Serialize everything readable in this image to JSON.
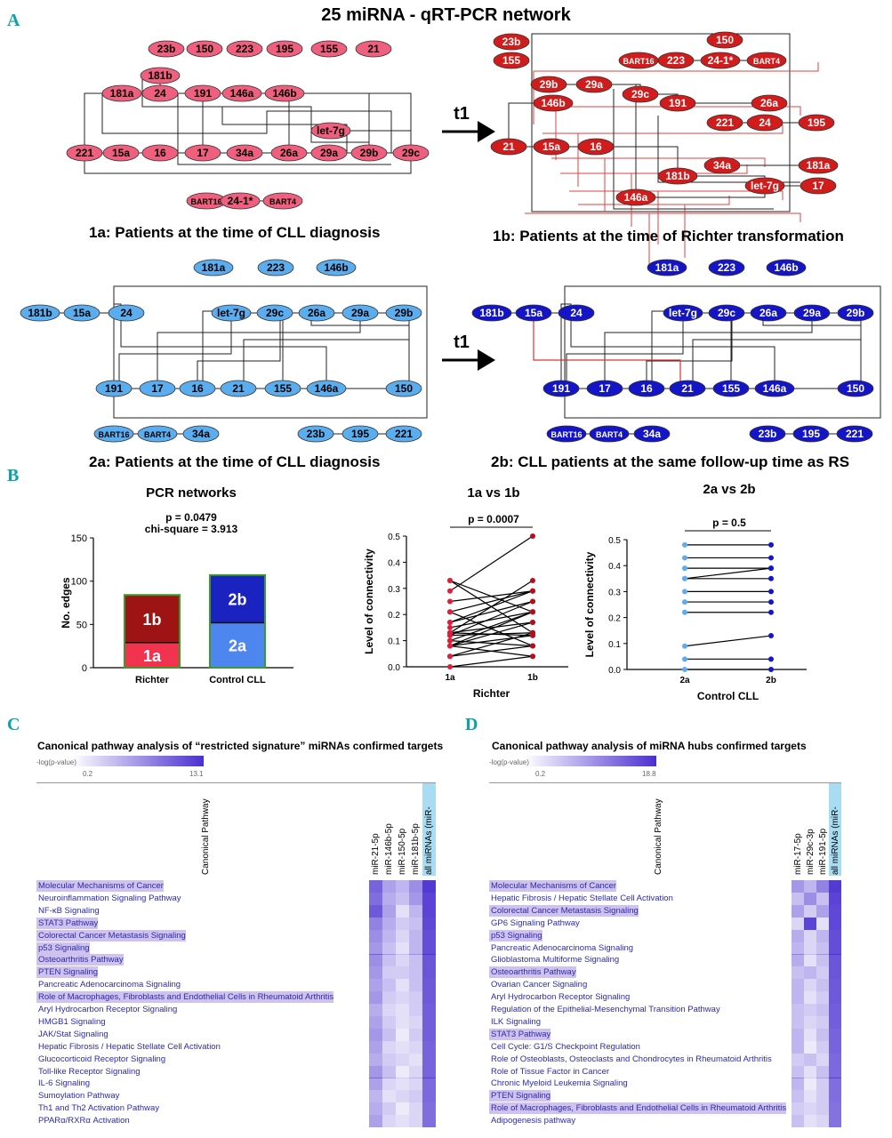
{
  "panel_labels": [
    "A",
    "B",
    "C",
    "D"
  ],
  "main_title": "25 miRNA - qRT-PCR network",
  "arrow_label": "t1",
  "networks": {
    "n1a": {
      "caption": "1a: Patients at the time of CLL diagnosis",
      "nodes": [
        "23b",
        "150",
        "223",
        "195",
        "155",
        "21",
        "181b",
        "181a",
        "24",
        "191",
        "146a",
        "146b",
        "let-7g",
        "221",
        "15a",
        "16",
        "17",
        "34a",
        "26a",
        "29a",
        "29b",
        "29c",
        "BART16",
        "24-1*",
        "BART4"
      ]
    },
    "n1b": {
      "caption": "1b: Patients at the time of Richter transformation",
      "nodes": [
        "23b",
        "155",
        "150",
        "BART16",
        "223",
        "24-1*",
        "BART4",
        "29b",
        "29a",
        "29c",
        "146b",
        "191",
        "26a",
        "221",
        "24",
        "195",
        "21",
        "15a",
        "16",
        "34a",
        "181a",
        "181b",
        "let-7g",
        "146a",
        "17"
      ]
    },
    "n2a": {
      "caption": "2a: Patients at the time of CLL diagnosis",
      "nodes": [
        "181a",
        "223",
        "146b",
        "181b",
        "15a",
        "24",
        "let-7g",
        "29c",
        "26a",
        "29a",
        "29b",
        "191",
        "17",
        "16",
        "21",
        "155",
        "146a",
        "150",
        "BART16",
        "BART4",
        "34a",
        "23b",
        "195",
        "221"
      ]
    },
    "n2b": {
      "caption": "2b: CLL patients at the same follow-up time as RS",
      "nodes": [
        "181a",
        "223",
        "146b",
        "181b",
        "15a",
        "24",
        "let-7g",
        "29c",
        "26a",
        "29a",
        "29b",
        "191",
        "17",
        "16",
        "21",
        "155",
        "146a",
        "150",
        "BART16",
        "BART4",
        "34a",
        "23b",
        "195",
        "221"
      ]
    }
  },
  "chart_data": [
    {
      "type": "bar",
      "title": "PCR networks",
      "stat_p": "p = 0.0479",
      "stat_chi": "chi-square = 3.913",
      "ylabel": "No. edges",
      "ylim": [
        0,
        150
      ],
      "yticks": [
        "0",
        "50",
        "100",
        "150"
      ],
      "categories": [
        "Richter",
        "Control CLL"
      ],
      "series": [
        {
          "name": "1a",
          "values": [
            29,
            null
          ]
        },
        {
          "name": "1b",
          "values": [
            55,
            null
          ]
        },
        {
          "name": "2a",
          "values": [
            null,
            52
          ]
        },
        {
          "name": "2b",
          "values": [
            null,
            55
          ]
        }
      ],
      "segment_labels": [
        "1a",
        "1b",
        "2a",
        "2b"
      ]
    },
    {
      "type": "line",
      "title": "1a vs 1b",
      "stat_p": "p = 0.0007",
      "xlabel": "Richter",
      "ylabel": "Level of connectivity",
      "ylim": [
        0,
        0.5
      ],
      "yticks": [
        "0.0",
        "0.1",
        "0.2",
        "0.3",
        "0.4",
        "0.5"
      ],
      "categories": [
        "1a",
        "1b"
      ],
      "pairs": [
        [
          0.0,
          0.04
        ],
        [
          0.04,
          0.08
        ],
        [
          0.04,
          0.13
        ],
        [
          0.08,
          0.12
        ],
        [
          0.08,
          0.17
        ],
        [
          0.08,
          0.21
        ],
        [
          0.08,
          0.04
        ],
        [
          0.1,
          0.08
        ],
        [
          0.1,
          0.21
        ],
        [
          0.12,
          0.13
        ],
        [
          0.12,
          0.25
        ],
        [
          0.13,
          0.12
        ],
        [
          0.13,
          0.17
        ],
        [
          0.13,
          0.33
        ],
        [
          0.15,
          0.21
        ],
        [
          0.17,
          0.25
        ],
        [
          0.17,
          0.29
        ],
        [
          0.21,
          0.29
        ],
        [
          0.21,
          0.08
        ],
        [
          0.25,
          0.29
        ],
        [
          0.29,
          0.5
        ],
        [
          0.33,
          0.21
        ],
        [
          0.33,
          0.13
        ]
      ]
    },
    {
      "type": "line",
      "title": "2a vs 2b",
      "stat_p": "p = 0.5",
      "xlabel": "Control CLL",
      "ylabel": "Level of connectivity",
      "ylim": [
        0,
        0.5
      ],
      "yticks": [
        "0.0",
        "0.1",
        "0.2",
        "0.3",
        "0.4",
        "0.5"
      ],
      "categories": [
        "2a",
        "2b"
      ],
      "pairs": [
        [
          0.0,
          0.0
        ],
        [
          0.04,
          0.04
        ],
        [
          0.09,
          0.13
        ],
        [
          0.22,
          0.22
        ],
        [
          0.26,
          0.26
        ],
        [
          0.3,
          0.3
        ],
        [
          0.35,
          0.39
        ],
        [
          0.35,
          0.35
        ],
        [
          0.39,
          0.39
        ],
        [
          0.43,
          0.43
        ],
        [
          0.48,
          0.48
        ]
      ]
    }
  ],
  "heatmaps": {
    "C": {
      "title": "Canonical pathway analysis of “restricted signature” miRNAs confirmed targets",
      "scale_label": "-log(p-value)",
      "scale_min": "0.2",
      "scale_max": "13.1",
      "pathway_header": "Canonical Pathway",
      "columns": [
        "miR-21-5p",
        "miR-146b-5p",
        "miR-150-5p",
        "miR-181b-5p",
        "all miRNAs (miR-"
      ],
      "rows": [
        {
          "name": "Molecular Mechanisms of Cancer",
          "hl": true,
          "v": [
            0.75,
            0.45,
            0.35,
            0.55,
            0.95
          ]
        },
        {
          "name": "Neuroinflammation Signaling Pathway",
          "hl": false,
          "v": [
            0.7,
            0.4,
            0.3,
            0.5,
            0.9
          ]
        },
        {
          "name": "NF-κB Signaling",
          "hl": false,
          "v": [
            0.8,
            0.45,
            0.15,
            0.35,
            0.9
          ]
        },
        {
          "name": "STAT3 Pathway",
          "hl": true,
          "v": [
            0.6,
            0.4,
            0.25,
            0.3,
            0.88
          ]
        },
        {
          "name": "Colorectal Cancer Metastasis Signaling",
          "hl": true,
          "v": [
            0.55,
            0.35,
            0.2,
            0.35,
            0.85
          ]
        },
        {
          "name": "p53 Signaling",
          "hl": true,
          "v": [
            0.5,
            0.3,
            0.15,
            0.35,
            0.85
          ]
        },
        {
          "name": "Osteoarthritis Pathway",
          "hl": true,
          "v": [
            0.55,
            0.3,
            0.2,
            0.3,
            0.82
          ]
        },
        {
          "name": "PTEN Signaling",
          "hl": true,
          "v": [
            0.5,
            0.25,
            0.25,
            0.3,
            0.82
          ]
        },
        {
          "name": "Pancreatic Adenocarcinoma Signaling",
          "hl": false,
          "v": [
            0.45,
            0.3,
            0.15,
            0.3,
            0.8
          ]
        },
        {
          "name": "Role of Macrophages, Fibroblasts and Endothelial Cells in Rheumatoid Arthritis",
          "hl": true,
          "v": [
            0.5,
            0.25,
            0.2,
            0.25,
            0.8
          ]
        },
        {
          "name": "Aryl Hydrocarbon Receptor Signaling",
          "hl": false,
          "v": [
            0.4,
            0.2,
            0.15,
            0.25,
            0.78
          ]
        },
        {
          "name": "HMGB1 Signaling",
          "hl": false,
          "v": [
            0.45,
            0.25,
            0.15,
            0.2,
            0.78
          ]
        },
        {
          "name": "JAK/Stat Signaling",
          "hl": false,
          "v": [
            0.5,
            0.3,
            0.1,
            0.25,
            0.78
          ]
        },
        {
          "name": "Hepatic Fibrosis / Hepatic Stellate Cell Activation",
          "hl": false,
          "v": [
            0.45,
            0.2,
            0.15,
            0.2,
            0.75
          ]
        },
        {
          "name": "Glucocorticoid Receptor Signaling",
          "hl": false,
          "v": [
            0.4,
            0.25,
            0.2,
            0.15,
            0.75
          ]
        },
        {
          "name": "Toll-like Receptor Signaling",
          "hl": false,
          "v": [
            0.5,
            0.3,
            0.1,
            0.2,
            0.75
          ]
        },
        {
          "name": "IL-6 Signaling",
          "hl": false,
          "v": [
            0.45,
            0.2,
            0.15,
            0.2,
            0.72
          ]
        },
        {
          "name": "Sumoylation Pathway",
          "hl": false,
          "v": [
            0.35,
            0.15,
            0.2,
            0.25,
            0.72
          ]
        },
        {
          "name": "Th1 and Th2 Activation Pathway",
          "hl": false,
          "v": [
            0.4,
            0.25,
            0.1,
            0.2,
            0.7
          ]
        },
        {
          "name": "PPARα/RXRα Activation",
          "hl": false,
          "v": [
            0.45,
            0.2,
            0.15,
            0.2,
            0.7
          ]
        }
      ]
    },
    "D": {
      "title": "Canonical pathway analysis of miRNA hubs confirmed targets",
      "scale_label": "-log(p-value)",
      "scale_min": "0.2",
      "scale_max": "18.8",
      "pathway_header": "Canonical Pathway",
      "columns": [
        "miR-17-5p",
        "miR-29c-3p",
        "miR-191-5p",
        "all miRNAs (miR-"
      ],
      "rows": [
        {
          "name": "Molecular Mechanisms of Cancer",
          "hl": true,
          "v": [
            0.5,
            0.35,
            0.6,
            0.95
          ]
        },
        {
          "name": "Hepatic Fibrosis / Hepatic Stellate Cell Activation",
          "hl": false,
          "v": [
            0.3,
            0.55,
            0.3,
            0.9
          ]
        },
        {
          "name": "Colorectal Cancer Metastasis Signaling",
          "hl": true,
          "v": [
            0.45,
            0.25,
            0.45,
            0.88
          ]
        },
        {
          "name": "GP6 Signaling Pathway",
          "hl": false,
          "v": [
            0.2,
            0.9,
            0.15,
            0.88
          ]
        },
        {
          "name": "p53 Signaling",
          "hl": true,
          "v": [
            0.4,
            0.2,
            0.35,
            0.85
          ]
        },
        {
          "name": "Pancreatic Adenocarcinoma Signaling",
          "hl": false,
          "v": [
            0.35,
            0.2,
            0.3,
            0.85
          ]
        },
        {
          "name": "Glioblastoma Multiforme Signaling",
          "hl": false,
          "v": [
            0.4,
            0.15,
            0.3,
            0.82
          ]
        },
        {
          "name": "Osteoarthritis Pathway",
          "hl": true,
          "v": [
            0.3,
            0.35,
            0.25,
            0.82
          ]
        },
        {
          "name": "Ovarian Cancer Signaling",
          "hl": false,
          "v": [
            0.35,
            0.2,
            0.3,
            0.8
          ]
        },
        {
          "name": "Aryl Hydrocarbon Receptor Signaling",
          "hl": false,
          "v": [
            0.35,
            0.15,
            0.25,
            0.8
          ]
        },
        {
          "name": "Regulation of the Epithelial-Mesenchymal Transition Pathway",
          "hl": false,
          "v": [
            0.3,
            0.25,
            0.3,
            0.78
          ]
        },
        {
          "name": "ILK Signaling",
          "hl": false,
          "v": [
            0.3,
            0.2,
            0.25,
            0.78
          ]
        },
        {
          "name": "STAT3 Pathway",
          "hl": true,
          "v": [
            0.35,
            0.15,
            0.3,
            0.75
          ]
        },
        {
          "name": "Cell Cycle: G1/S Checkpoint Regulation",
          "hl": false,
          "v": [
            0.35,
            0.1,
            0.25,
            0.75
          ]
        },
        {
          "name": "Role of Osteoblasts, Osteoclasts and Chondrocytes in Rheumatoid Arthritis",
          "hl": false,
          "v": [
            0.25,
            0.3,
            0.2,
            0.72
          ]
        },
        {
          "name": "Role of Tissue Factor in Cancer",
          "hl": false,
          "v": [
            0.3,
            0.15,
            0.3,
            0.72
          ]
        },
        {
          "name": "Chronic Myeloid Leukemia Signaling",
          "hl": false,
          "v": [
            0.35,
            0.1,
            0.25,
            0.7
          ]
        },
        {
          "name": "PTEN Signaling",
          "hl": true,
          "v": [
            0.3,
            0.15,
            0.25,
            0.7
          ]
        },
        {
          "name": "Role of Macrophages, Fibroblasts and Endothelial Cells in Rheumatoid Arthritis",
          "hl": true,
          "v": [
            0.25,
            0.2,
            0.25,
            0.68
          ]
        },
        {
          "name": "Adipogenesis pathway",
          "hl": false,
          "v": [
            0.3,
            0.15,
            0.2,
            0.68
          ]
        }
      ]
    }
  },
  "colors": {
    "pink": "#f0607e",
    "red": "#d21c1c",
    "light_blue": "#5aaeef",
    "dark_blue": "#1515c8",
    "bar_1a": "#f2334f",
    "bar_1b": "#9e1414",
    "bar_2a": "#4e86f0",
    "bar_2b": "#1a22c0",
    "bar_border": "#3a9a2a",
    "heat": "#4a2fd0"
  }
}
